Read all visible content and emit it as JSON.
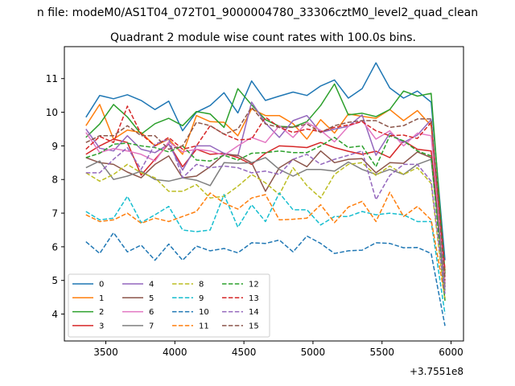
{
  "chart_data": {
    "type": "line",
    "suptitle": "n file: modeM0/AS1T04_072T01_9000004780_33306cztM0_level2_quad_clean",
    "title": "Quadrant 2 module wise count rates with 100.0s bins.",
    "xlabel": "",
    "ylabel": "",
    "x_offset_label": "+3.7551e8",
    "xlim": [
      3200,
      6090
    ],
    "ylim": [
      3.2,
      11.95
    ],
    "xticks": [
      3500,
      4000,
      4500,
      5000,
      5500,
      6000
    ],
    "yticks": [
      4,
      5,
      6,
      7,
      8,
      9,
      10,
      11
    ],
    "grid": false,
    "legend_position": "lower-left",
    "legend_columns": 4,
    "x": [
      3356,
      3456,
      3556,
      3656,
      3756,
      3856,
      3956,
      4056,
      4156,
      4256,
      4356,
      4456,
      4556,
      4656,
      4756,
      4856,
      4956,
      5056,
      5156,
      5256,
      5356,
      5456,
      5556,
      5656,
      5756,
      5856,
      5956
    ],
    "series": [
      {
        "name": "0",
        "color": "#1f77b4",
        "dash": "solid",
        "values": [
          9.85,
          10.5,
          10.4,
          10.52,
          10.35,
          10.08,
          10.33,
          9.45,
          10.0,
          10.2,
          10.58,
          9.98,
          10.93,
          10.35,
          10.48,
          10.6,
          10.5,
          10.78,
          10.96,
          10.42,
          10.7,
          11.47,
          10.72,
          10.42,
          10.63,
          10.3,
          5.6
        ]
      },
      {
        "name": "1",
        "color": "#ff7f0e",
        "dash": "solid",
        "values": [
          9.6,
          10.23,
          9.2,
          9.47,
          9.4,
          9.0,
          9.2,
          8.75,
          9.9,
          9.72,
          9.7,
          9.3,
          10.1,
          9.9,
          9.9,
          9.66,
          9.2,
          9.78,
          9.38,
          9.95,
          9.88,
          9.82,
          10.08,
          9.75,
          10.05,
          9.6,
          5.3
        ]
      },
      {
        "name": "2",
        "color": "#2ca02c",
        "dash": "solid",
        "values": [
          9.25,
          9.65,
          10.23,
          9.86,
          9.35,
          9.66,
          9.82,
          9.6,
          10.02,
          9.95,
          9.55,
          10.7,
          10.22,
          9.78,
          9.58,
          9.56,
          9.72,
          10.2,
          10.84,
          9.92,
          9.97,
          9.87,
          10.08,
          10.63,
          10.48,
          10.56,
          5.2
        ]
      },
      {
        "name": "3",
        "color": "#d62728",
        "dash": "solid",
        "values": [
          8.75,
          9.0,
          9.2,
          9.1,
          8.13,
          8.6,
          9.06,
          8.38,
          8.9,
          8.75,
          8.78,
          8.65,
          8.45,
          8.78,
          9.0,
          8.98,
          8.95,
          9.1,
          8.95,
          8.84,
          8.75,
          8.84,
          8.65,
          9.15,
          8.9,
          8.85,
          5.1
        ]
      },
      {
        "name": "4",
        "color": "#9467bd",
        "dash": "solid",
        "values": [
          9.5,
          8.93,
          8.85,
          9.3,
          8.9,
          8.8,
          9.05,
          8.28,
          9.0,
          9.0,
          8.78,
          8.7,
          10.3,
          9.68,
          9.25,
          9.75,
          9.9,
          9.4,
          9.5,
          9.58,
          9.92,
          8.72,
          9.38,
          9.1,
          9.32,
          9.78,
          4.9
        ]
      },
      {
        "name": "5",
        "color": "#8c564b",
        "dash": "solid",
        "values": [
          8.65,
          8.5,
          8.45,
          8.22,
          8.05,
          8.45,
          8.7,
          8.05,
          8.1,
          8.38,
          8.75,
          8.72,
          8.5,
          7.65,
          8.35,
          8.6,
          8.38,
          8.85,
          8.5,
          8.6,
          8.62,
          8.2,
          8.5,
          8.48,
          8.82,
          8.65,
          4.8
        ]
      },
      {
        "name": "6",
        "color": "#e377c2",
        "dash": "solid",
        "values": [
          9.4,
          8.8,
          8.92,
          8.85,
          8.75,
          8.55,
          9.12,
          8.82,
          8.9,
          8.85,
          8.72,
          9.0,
          9.25,
          9.1,
          9.6,
          9.25,
          9.7,
          9.46,
          9.12,
          9.58,
          9.75,
          9.2,
          9.45,
          9.0,
          9.38,
          9.3,
          4.95
        ]
      },
      {
        "name": "7",
        "color": "#7f7f7f",
        "dash": "solid",
        "values": [
          8.35,
          8.55,
          8.0,
          8.1,
          8.25,
          8.0,
          7.95,
          8.05,
          7.98,
          7.82,
          8.5,
          8.48,
          8.5,
          8.65,
          8.3,
          8.1,
          8.3,
          8.3,
          8.25,
          8.52,
          8.3,
          8.15,
          8.3,
          8.15,
          8.45,
          8.6,
          4.7
        ]
      },
      {
        "name": "8",
        "color": "#bcbd22",
        "dash": "dashed",
        "values": [
          8.2,
          7.95,
          8.15,
          8.45,
          8.2,
          8.05,
          7.65,
          7.65,
          7.85,
          7.45,
          7.5,
          7.8,
          8.15,
          7.9,
          7.55,
          8.35,
          7.82,
          7.45,
          8.15,
          8.45,
          8.5,
          8.12,
          8.4,
          8.15,
          8.35,
          7.88,
          4.4
        ]
      },
      {
        "name": "9",
        "color": "#17becf",
        "dash": "dashed",
        "values": [
          7.05,
          6.8,
          6.85,
          7.5,
          6.72,
          6.95,
          7.2,
          6.5,
          6.45,
          6.5,
          7.55,
          6.58,
          7.25,
          6.75,
          7.6,
          7.1,
          7.1,
          6.65,
          6.9,
          6.9,
          7.05,
          6.95,
          7.0,
          6.95,
          6.75,
          6.75,
          4.0
        ]
      },
      {
        "name": "10",
        "color": "#1f77b4",
        "dash": "dashed",
        "values": [
          6.15,
          5.8,
          6.42,
          5.85,
          6.05,
          5.6,
          6.08,
          5.6,
          6.02,
          5.88,
          5.95,
          5.82,
          6.12,
          6.1,
          6.2,
          5.85,
          6.32,
          6.1,
          5.8,
          5.88,
          5.9,
          6.12,
          6.1,
          5.97,
          5.98,
          5.8,
          3.65
        ]
      },
      {
        "name": "11",
        "color": "#ff7f0e",
        "dash": "dashed",
        "values": [
          6.95,
          6.75,
          6.8,
          7.0,
          6.7,
          6.85,
          6.75,
          6.9,
          7.05,
          7.6,
          7.3,
          7.12,
          7.45,
          7.55,
          6.8,
          6.82,
          6.85,
          7.25,
          6.72,
          7.18,
          7.35,
          6.75,
          7.62,
          6.9,
          7.2,
          6.8,
          4.5
        ]
      },
      {
        "name": "12",
        "color": "#2ca02c",
        "dash": "dashed",
        "values": [
          8.65,
          8.78,
          9.05,
          9.08,
          9.0,
          8.95,
          8.82,
          9.0,
          8.58,
          8.55,
          8.72,
          8.58,
          8.78,
          8.8,
          8.85,
          8.8,
          8.8,
          9.0,
          9.25,
          8.95,
          9.0,
          8.38,
          9.3,
          9.15,
          8.85,
          8.7,
          4.4
        ]
      },
      {
        "name": "13",
        "color": "#d62728",
        "dash": "dashed",
        "values": [
          8.9,
          9.28,
          9.1,
          10.18,
          9.35,
          9.0,
          9.25,
          8.9,
          9.0,
          9.6,
          9.35,
          9.18,
          9.2,
          9.85,
          9.55,
          9.4,
          9.5,
          9.42,
          9.55,
          9.62,
          9.72,
          9.45,
          9.3,
          9.32,
          9.22,
          9.7,
          5.3
        ]
      },
      {
        "name": "14",
        "color": "#9467bd",
        "dash": "dashed",
        "values": [
          8.2,
          8.2,
          8.6,
          8.95,
          8.3,
          9.05,
          9.2,
          8.05,
          8.45,
          8.35,
          8.4,
          8.35,
          8.2,
          8.25,
          8.15,
          8.6,
          8.75,
          8.45,
          8.6,
          8.72,
          8.85,
          7.4,
          8.12,
          8.45,
          8.45,
          7.95,
          4.6
        ]
      },
      {
        "name": "15",
        "color": "#8c564b",
        "dash": "dashed",
        "values": [
          9.1,
          9.3,
          9.3,
          9.6,
          9.3,
          9.3,
          8.9,
          9.0,
          9.7,
          9.6,
          9.35,
          9.5,
          10.15,
          9.65,
          9.55,
          9.55,
          9.65,
          9.4,
          9.6,
          9.7,
          9.75,
          9.75,
          9.55,
          9.6,
          9.8,
          9.8,
          5.0
        ]
      }
    ]
  }
}
